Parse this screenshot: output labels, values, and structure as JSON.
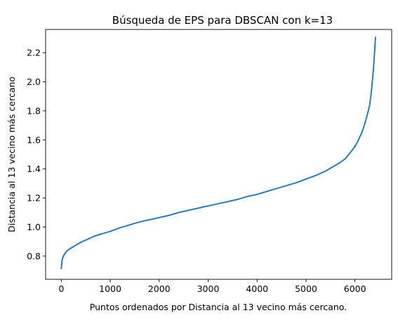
{
  "chart_data": {
    "type": "line",
    "title": "Búsqueda de EPS para DBSCAN con k=13",
    "xlabel": "Puntos ordenados por Distancia al 13 vecino más cercano.",
    "ylabel": "Distancia al 13 vecino más cercano",
    "xlim": [
      -320,
      6750
    ],
    "ylim": [
      0.64,
      2.36
    ],
    "xticks": [
      0,
      1000,
      2000,
      3000,
      4000,
      5000,
      6000
    ],
    "yticks": [
      0.8,
      1.0,
      1.2,
      1.4,
      1.6,
      1.8,
      2.0,
      2.2
    ],
    "ytick_labels": [
      "0.8",
      "1.0",
      "1.2",
      "1.4",
      "1.6",
      "1.8",
      "2.0",
      "2.2"
    ],
    "grid": false,
    "series": [
      {
        "color": "#1f77b4",
        "x": [
          0,
          10,
          30,
          60,
          100,
          150,
          200,
          300,
          400,
          500,
          600,
          700,
          800,
          900,
          1000,
          1200,
          1400,
          1600,
          1800,
          2000,
          2200,
          2400,
          2600,
          2800,
          3000,
          3200,
          3400,
          3600,
          3800,
          4000,
          4200,
          4400,
          4600,
          4800,
          5000,
          5200,
          5400,
          5600,
          5700,
          5800,
          5900,
          6000,
          6050,
          6100,
          6150,
          6200,
          6250,
          6300,
          6320,
          6340,
          6360,
          6380,
          6400,
          6410,
          6420
        ],
        "values": [
          0.71,
          0.76,
          0.79,
          0.81,
          0.83,
          0.845,
          0.855,
          0.875,
          0.895,
          0.91,
          0.925,
          0.94,
          0.95,
          0.96,
          0.97,
          0.995,
          1.015,
          1.035,
          1.05,
          1.065,
          1.08,
          1.1,
          1.115,
          1.13,
          1.145,
          1.16,
          1.175,
          1.19,
          1.21,
          1.225,
          1.245,
          1.265,
          1.285,
          1.305,
          1.33,
          1.355,
          1.385,
          1.425,
          1.445,
          1.47,
          1.51,
          1.555,
          1.585,
          1.62,
          1.66,
          1.71,
          1.77,
          1.84,
          1.89,
          1.95,
          2.02,
          2.1,
          2.2,
          2.26,
          2.31
        ]
      }
    ]
  }
}
